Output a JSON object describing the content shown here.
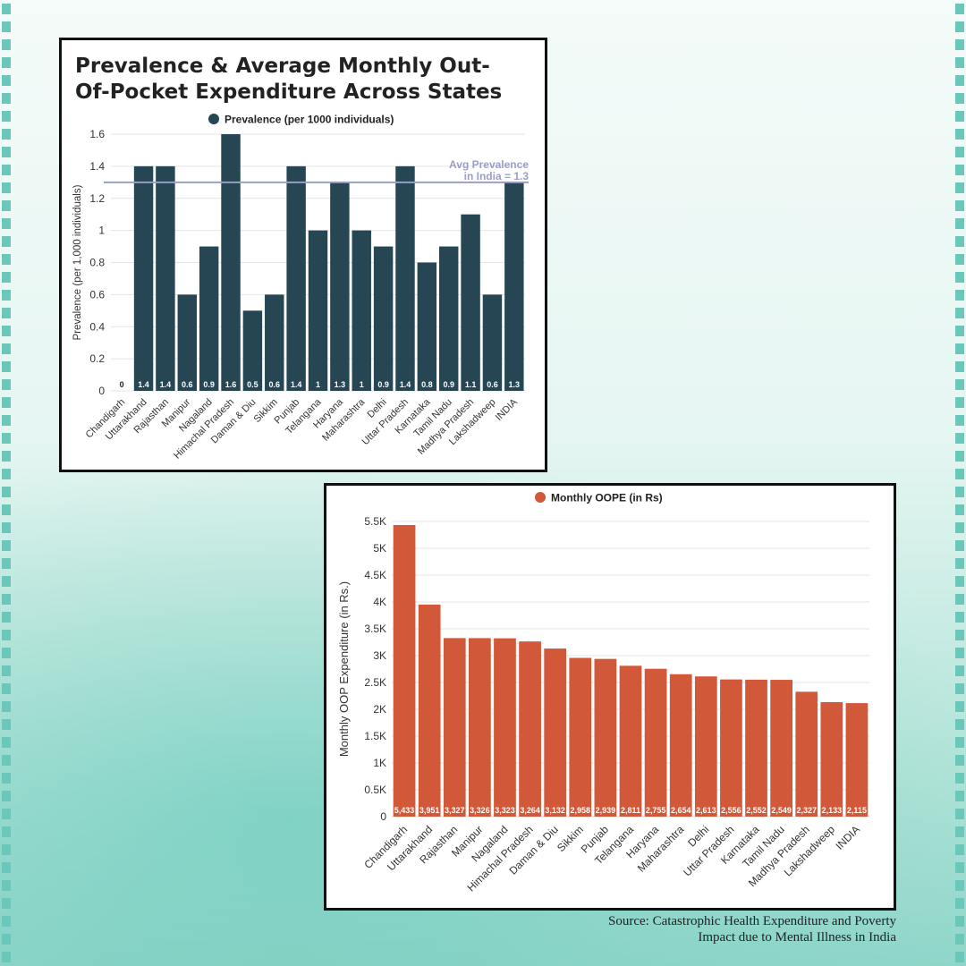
{
  "title": "Prevalence & Average Monthly Out-Of-Pocket Expenditure Across States",
  "source": [
    "Source: Catastrophic Health Expenditure and Poverty",
    "Impact due to Mental Illness in India"
  ],
  "colors": {
    "prevalence_bar": "#264653",
    "oope_bar": "#d2583a",
    "avg_line": "#9a9ec8",
    "frame": "#111111"
  },
  "chart_data": [
    {
      "type": "bar",
      "legend": "Prevalence (per 1000 individuals)",
      "ylabel": "Prevalence (per 1,000 individuals)",
      "ylim": [
        0,
        1.6
      ],
      "yticks": [
        "0",
        "0.2",
        "0.4",
        "0.6",
        "0.8",
        "1",
        "1.2",
        "1.4",
        "1.6"
      ],
      "categories": [
        "Chandigarh",
        "Uttarakhand",
        "Rajasthan",
        "Manipur",
        "Nagaland",
        "Himachal Pradesh",
        "Daman & Diu",
        "Sikkim",
        "Punjab",
        "Telangana",
        "Haryana",
        "Maharashtra",
        "Delhi",
        "Uttar Pradesh",
        "Karnataka",
        "Tamil Nadu",
        "Madhya Pradesh",
        "Lakshadweep",
        "INDIA"
      ],
      "values": [
        0,
        1.4,
        1.4,
        0.6,
        0.9,
        1.6,
        0.5,
        0.6,
        1.4,
        1,
        1.3,
        1,
        0.9,
        1.4,
        0.8,
        0.9,
        1.1,
        0.6,
        1.3
      ],
      "value_labels": [
        "0",
        "1.4",
        "1.4",
        "0.6",
        "0.9",
        "1.6",
        "0.5",
        "0.6",
        "1.4",
        "1",
        "1.3",
        "1",
        "0.9",
        "1.4",
        "0.8",
        "0.9",
        "1.1",
        "0.6",
        "1.3"
      ],
      "reference_line": {
        "value": 1.3,
        "label": [
          "Avg Prevalence",
          "in India = 1.3"
        ]
      },
      "grid": true,
      "legend_position": "top"
    },
    {
      "type": "bar",
      "legend": "Monthly OOPE (in Rs)",
      "ylabel": "Monthly OOP Expenditure (in Rs.)",
      "ylim": [
        0,
        5500
      ],
      "yticks": [
        "0",
        "0.5K",
        "1K",
        "1.5K",
        "2K",
        "2.5K",
        "3K",
        "3.5K",
        "4K",
        "4.5K",
        "5K",
        "5.5K"
      ],
      "categories": [
        "Chandigarh",
        "Uttarakhand",
        "Rajasthan",
        "Manipur",
        "Nagaland",
        "Himachal Pradesh",
        "Daman & Diu",
        "Sikkim",
        "Punjab",
        "Telangana",
        "Haryana",
        "Maharashtra",
        "Delhi",
        "Uttar Pradesh",
        "Karnataka",
        "Tamil Nadu",
        "Madhya Pradesh",
        "Lakshadweep",
        "INDIA"
      ],
      "values": [
        5433,
        3951,
        3327,
        3326,
        3323,
        3264,
        3132,
        2958,
        2939,
        2811,
        2755,
        2654,
        2613,
        2556,
        2552,
        2549,
        2327,
        2133,
        2115
      ],
      "value_labels": [
        "5,433",
        "3,951",
        "3,327",
        "3,326",
        "3,323",
        "3,264",
        "3,132",
        "2,958",
        "2,939",
        "2,811",
        "2,755",
        "2,654",
        "2,613",
        "2,556",
        "2,552",
        "2,549",
        "2,327",
        "2,133",
        "2,115"
      ],
      "grid": true,
      "legend_position": "top"
    }
  ]
}
